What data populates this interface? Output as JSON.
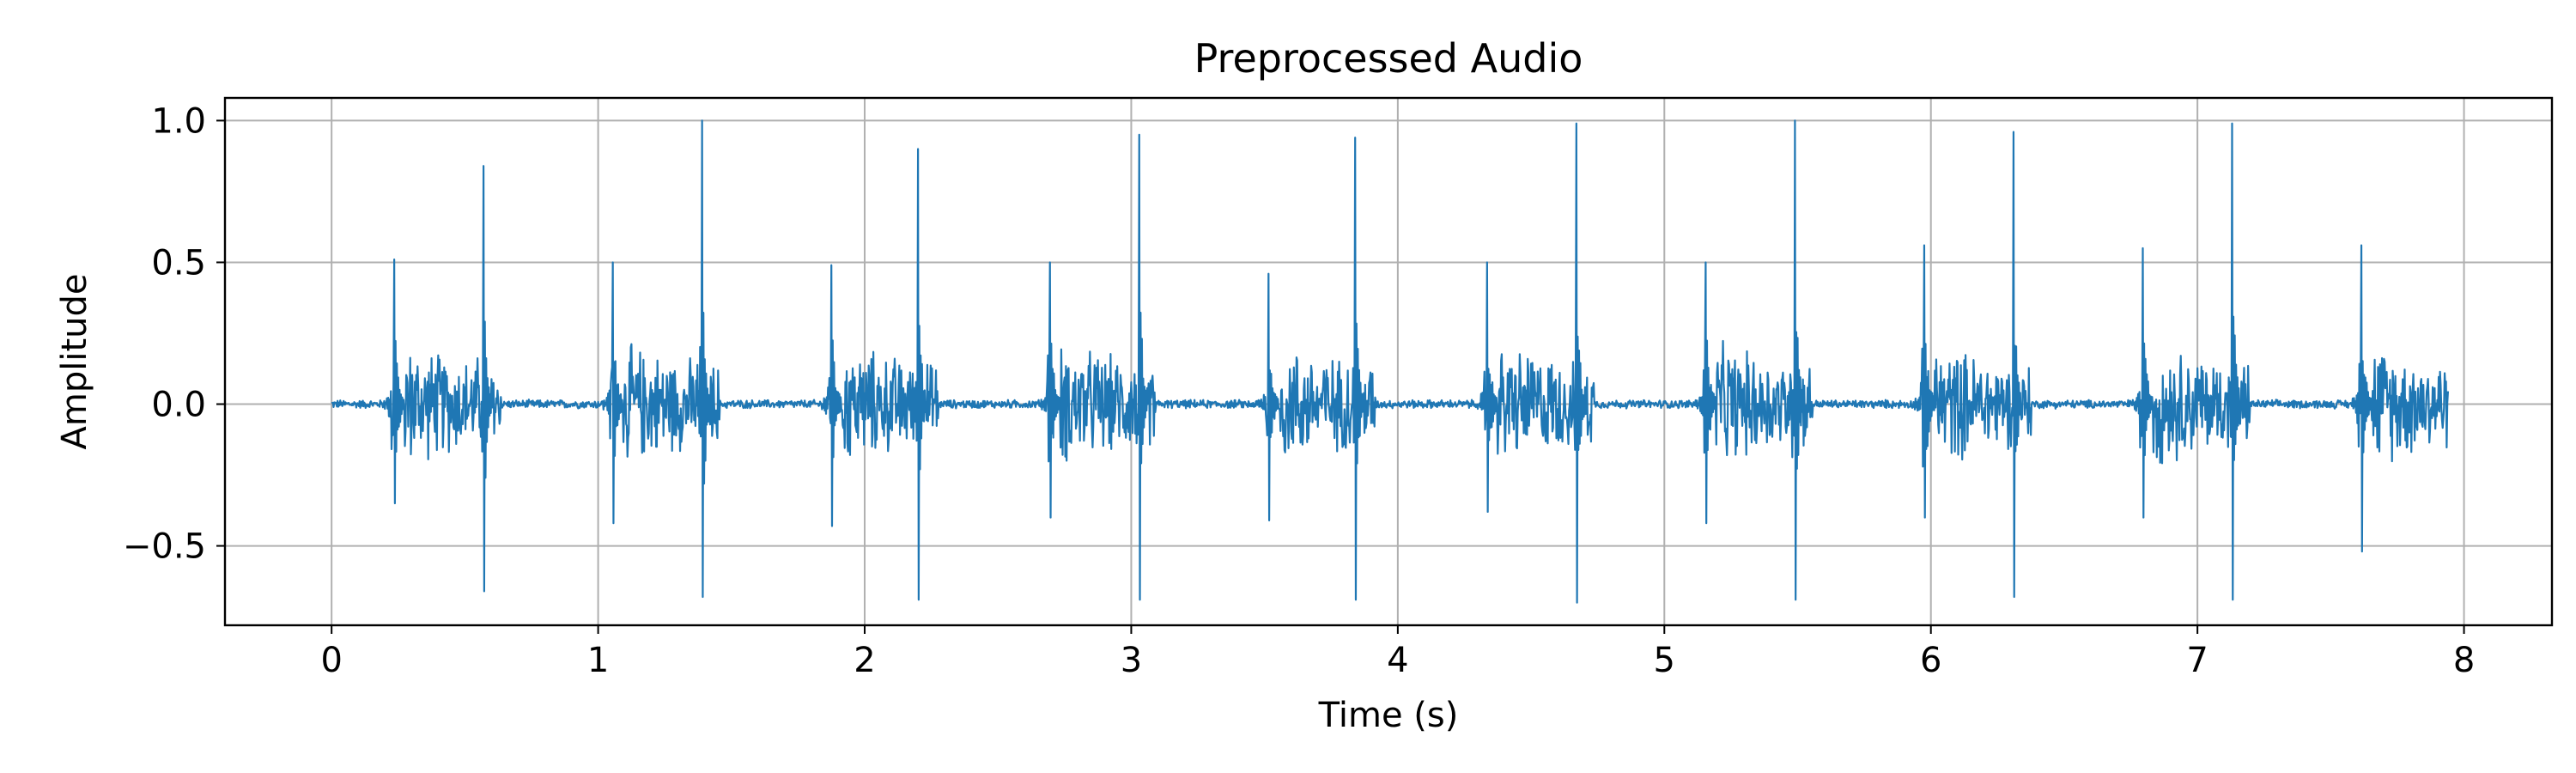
{
  "chart_data": {
    "type": "line",
    "title": "Preprocessed Audio",
    "xlabel": "Time (s)",
    "ylabel": "Amplitude",
    "xlim": [
      -0.4,
      8.33
    ],
    "ylim": [
      -0.78,
      1.08
    ],
    "xticks": [
      0,
      1,
      2,
      3,
      4,
      5,
      6,
      7,
      8
    ],
    "xtick_labels": [
      "0",
      "1",
      "2",
      "3",
      "4",
      "5",
      "6",
      "7",
      "8"
    ],
    "yticks": [
      -0.5,
      0.0,
      0.5,
      1.0
    ],
    "ytick_labels": [
      "−0.5",
      "0.0",
      "0.5",
      "1.0"
    ],
    "grid": true,
    "legend": false,
    "line_color": "#1f77b4",
    "grid_color": "#b0b0b0",
    "signal": {
      "start": 0.0,
      "end": 7.94,
      "sample_rate_hz": 400,
      "baseline_amplitude": 0.012
    },
    "beats": [
      {
        "s1_time": 0.235,
        "s1_peak": 0.51,
        "s1_trough": -0.35,
        "s2_time": 0.57,
        "s2_peak": 0.84,
        "s2_trough": -0.66
      },
      {
        "s1_time": 1.055,
        "s1_peak": 0.5,
        "s1_trough": -0.42,
        "s2_time": 1.39,
        "s2_peak": 1.0,
        "s2_trough": -0.68
      },
      {
        "s1_time": 1.875,
        "s1_peak": 0.49,
        "s1_trough": -0.43,
        "s2_time": 2.2,
        "s2_peak": 0.9,
        "s2_trough": -0.69
      },
      {
        "s1_time": 2.695,
        "s1_peak": 0.5,
        "s1_trough": -0.4,
        "s2_time": 3.03,
        "s2_peak": 0.95,
        "s2_trough": -0.69
      },
      {
        "s1_time": 3.515,
        "s1_peak": 0.46,
        "s1_trough": -0.41,
        "s2_time": 3.84,
        "s2_peak": 0.94,
        "s2_trough": -0.69
      },
      {
        "s1_time": 4.335,
        "s1_peak": 0.5,
        "s1_trough": -0.38,
        "s2_time": 4.67,
        "s2_peak": 0.99,
        "s2_trough": -0.7
      },
      {
        "s1_time": 5.155,
        "s1_peak": 0.5,
        "s1_trough": -0.42,
        "s2_time": 5.49,
        "s2_peak": 1.0,
        "s2_trough": -0.69
      },
      {
        "s1_time": 5.975,
        "s1_peak": 0.56,
        "s1_trough": -0.4,
        "s2_time": 6.31,
        "s2_peak": 0.96,
        "s2_trough": -0.68
      },
      {
        "s1_time": 6.795,
        "s1_peak": 0.55,
        "s1_trough": -0.4,
        "s2_time": 7.13,
        "s2_peak": 0.99,
        "s2_trough": -0.69
      },
      {
        "s1_time": 7.615,
        "s1_peak": 0.56,
        "s1_trough": -0.52,
        "s2_time": null,
        "s2_peak": null,
        "s2_trough": null
      }
    ]
  }
}
